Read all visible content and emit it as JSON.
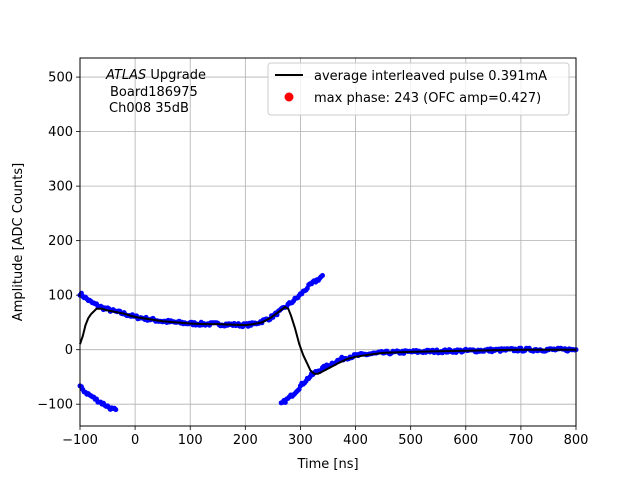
{
  "chart_data": {
    "type": "scatter",
    "title": "",
    "xlabel": "Time [ns]",
    "ylabel": "Amplitude [ADC Counts]",
    "xlim": [
      -100,
      800
    ],
    "ylim": [
      -140,
      535
    ],
    "xticks": [
      -100,
      0,
      100,
      200,
      300,
      400,
      500,
      600,
      700,
      800
    ],
    "yticks": [
      -100,
      0,
      100,
      200,
      300,
      400,
      500
    ],
    "grid": true,
    "legend_position": "top-right",
    "annotation": {
      "atlas": "ATLAS",
      "upgrade": " Upgrade",
      "board": "Board186975",
      "channel": "Ch008 35dB"
    },
    "series": [
      {
        "name": "average interleaved pulse 0.391mA",
        "kind": "line",
        "color": "#000000",
        "x": [
          -100,
          -95,
          -90,
          -85,
          -80,
          -70,
          -60,
          -50,
          -40,
          -20,
          0,
          25,
          50,
          75,
          100,
          125,
          150,
          175,
          200,
          215,
          230,
          245,
          255,
          265,
          272,
          278,
          283,
          290,
          298,
          305,
          312,
          318,
          325,
          332,
          340,
          355,
          370,
          385,
          400,
          425,
          450,
          475,
          500,
          550,
          600,
          650,
          700,
          750,
          800
        ],
        "y": [
          10,
          25,
          45,
          58,
          65,
          75,
          75,
          72,
          70,
          66,
          60,
          56,
          52,
          50,
          48,
          47,
          47,
          46,
          45,
          47,
          50,
          58,
          65,
          73,
          78,
          75,
          62,
          40,
          10,
          -10,
          -25,
          -38,
          -44,
          -44,
          -40,
          -32,
          -24,
          -17,
          -13,
          -9,
          -6,
          -5,
          -4,
          -3,
          -2,
          -1,
          0,
          0,
          0
        ]
      },
      {
        "name": "",
        "kind": "scatter",
        "color": "#0000ff",
        "bands": [
          {
            "x": [
              -100,
              -90,
              -80,
              -70,
              -60,
              -50,
              -40,
              -20,
              0,
              25,
              50,
              75,
              100,
              125,
              150,
              175,
              200,
              215,
              230,
              245,
              255,
              265,
              275,
              285,
              295,
              305,
              315,
              325,
              335,
              340
            ],
            "y": [
              103,
              95,
              87,
              82,
              77,
              74,
              71,
              66,
              60,
              56,
              52,
              50,
              48,
              47,
              47,
              46,
              45,
              47,
              52,
              58,
              65,
              72,
              80,
              88,
              96,
              106,
              116,
              124,
              131,
              136
            ]
          },
          {
            "x": [
              -100,
              -90,
              -80,
              -70,
              -60,
              -50,
              -40,
              -35
            ],
            "y": [
              -68,
              -78,
              -85,
              -92,
              -98,
              -104,
              -110,
              -110
            ]
          },
          {
            "x": [
              265,
              270,
              280,
              290,
              300,
              310,
              320,
              330,
              345,
              360,
              375,
              390,
              400,
              425,
              450,
              475,
              500,
              550,
              600,
              650,
              700,
              750,
              800
            ],
            "y": [
              -100,
              -96,
              -88,
              -78,
              -67,
              -56,
              -47,
              -40,
              -32,
              -24,
              -17,
              -13,
              -11,
              -8,
              -6,
              -5,
              -4,
              -3,
              -2,
              -1,
              0,
              0,
              0
            ]
          }
        ]
      },
      {
        "name": "max phase: 243 (OFC amp=0.427)",
        "kind": "marker",
        "color": "#ff0000",
        "x": [],
        "y": []
      }
    ]
  }
}
